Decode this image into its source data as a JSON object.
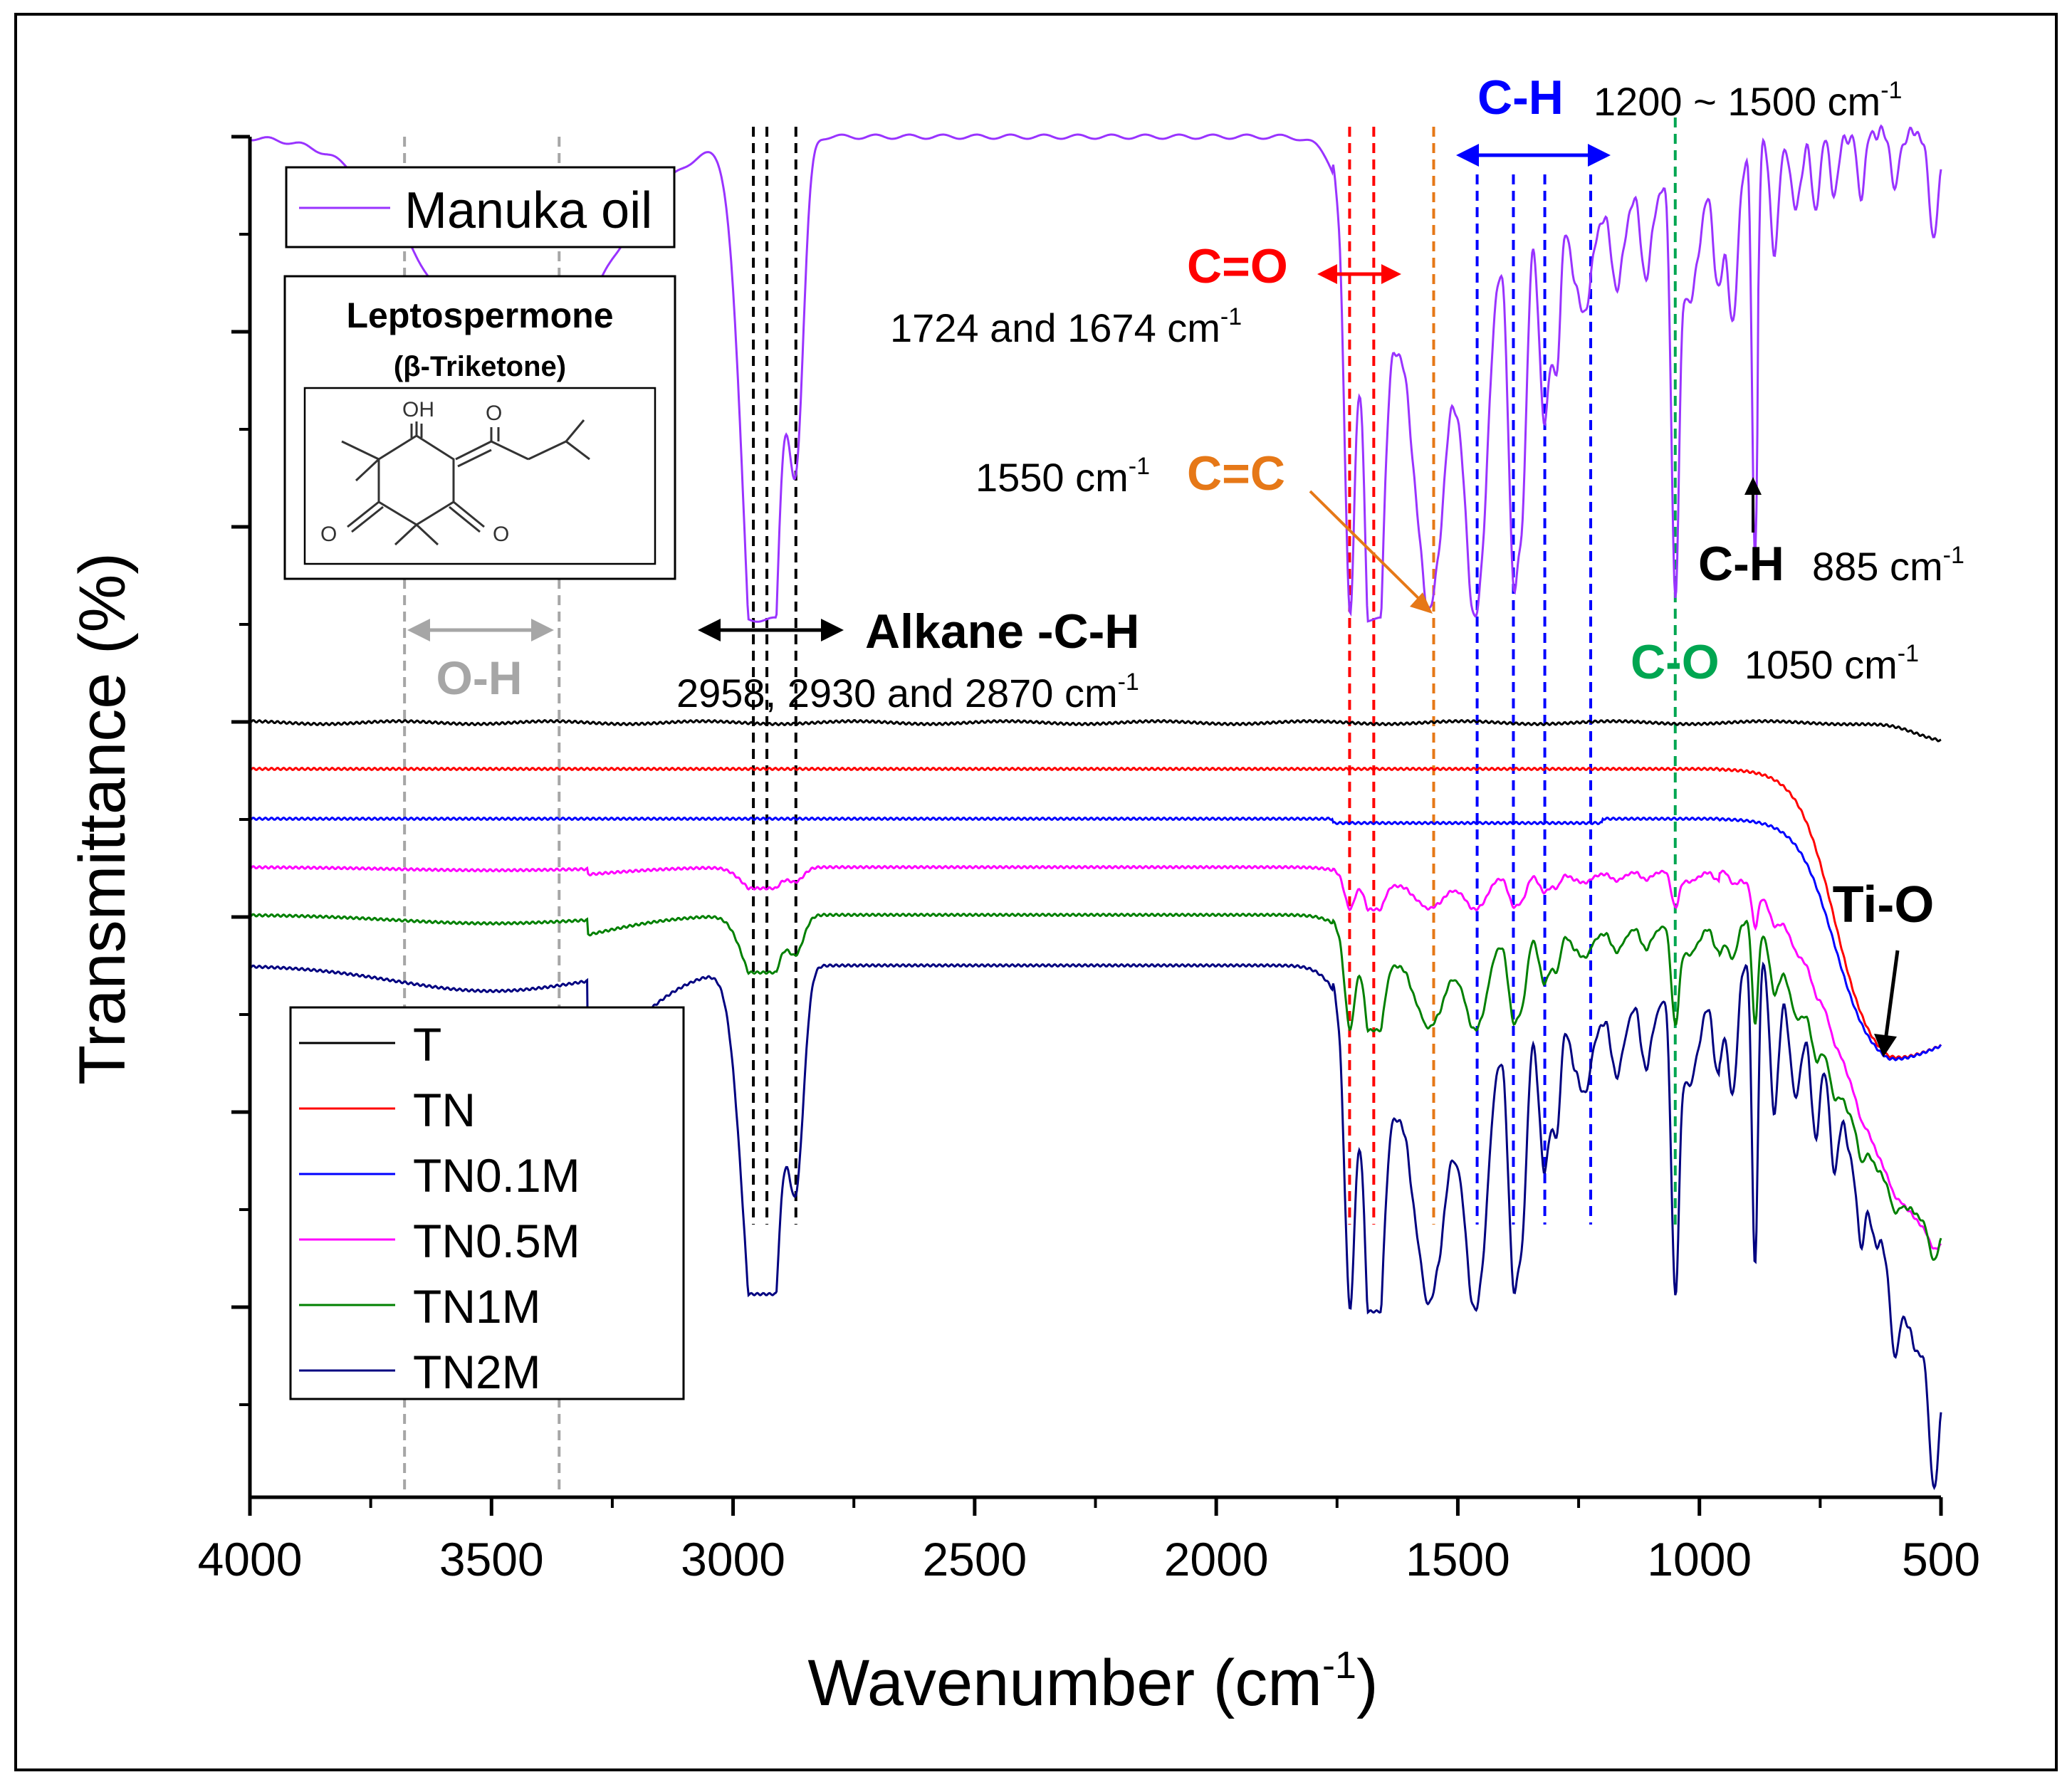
{
  "chart_data": {
    "type": "line",
    "title": "",
    "xlabel": "Wavenumber (cm",
    "xlabel_sup": "-1",
    "xlabel_end": ")",
    "ylabel": "Transmittance (%)",
    "xlim": [
      4000,
      500
    ],
    "xticks": [
      4000,
      3500,
      3000,
      2500,
      2000,
      1500,
      1000,
      500
    ],
    "y_tick_labels_shown": false,
    "colors": {
      "manuka": "#9933ff",
      "T": "#000000",
      "TN": "#ff0000",
      "TN0.1M": "#0000ff",
      "TN0.5M": "#ff00ff",
      "TN1M": "#008000",
      "TN2M": "#000080",
      "oh": "#a6a6a6",
      "alkane": "#000000",
      "co_double": "#ff0000",
      "cc": "#e67817",
      "ch": "#0000ff",
      "co_single": "#00a651"
    },
    "series": [
      {
        "name": "Manuka oil",
        "color": "#9933ff",
        "offset": 0,
        "scale": 1.0
      },
      {
        "name": "T",
        "color": "#000000",
        "offset": 0,
        "scale": 0
      },
      {
        "name": "TN",
        "color": "#ff0000",
        "offset": 0,
        "scale": 0
      },
      {
        "name": "TN0.1M",
        "color": "#0000ff",
        "offset": 0,
        "scale": 0
      },
      {
        "name": "TN0.5M",
        "color": "#ff00ff",
        "offset": 0,
        "scale": 0.05
      },
      {
        "name": "TN1M",
        "color": "#008000",
        "offset": 0,
        "scale": 0.12
      },
      {
        "name": "TN2M",
        "color": "#000080",
        "offset": 0,
        "scale": 1.0
      }
    ],
    "legend_top": {
      "entries": [
        "Manuka oil"
      ]
    },
    "legend_bottom": {
      "entries": [
        "T",
        "TN",
        "TN0.1M",
        "TN0.5M",
        "TN1M",
        "TN2M"
      ]
    },
    "inset": {
      "title": "Leptospermone",
      "subtitle": "(β-Triketone)",
      "atom_labels": [
        "OH",
        "O",
        "O",
        "O"
      ]
    },
    "marker_lines": [
      {
        "group": "oh",
        "x": 3680
      },
      {
        "group": "oh",
        "x": 3360
      },
      {
        "group": "alkane",
        "x": 2958
      },
      {
        "group": "alkane",
        "x": 2930
      },
      {
        "group": "alkane",
        "x": 2870
      },
      {
        "group": "co_double",
        "x": 1724
      },
      {
        "group": "co_double",
        "x": 1674
      },
      {
        "group": "cc",
        "x": 1550
      },
      {
        "group": "ch",
        "x": 1460
      },
      {
        "group": "ch",
        "x": 1385
      },
      {
        "group": "ch",
        "x": 1320
      },
      {
        "group": "ch",
        "x": 1225
      },
      {
        "group": "co_single",
        "x": 1050
      }
    ],
    "annotations": {
      "oh": "O-H",
      "alkane_label": "Alkane -C-H",
      "alkane_values": "2958, 2930 and 2870 cm",
      "cm_sup": "-1",
      "co_label": "C=O",
      "co_values": "1724 and 1674 cm",
      "cc_values": "1550 cm",
      "cc_label": "C=C",
      "ch_label": "C-H",
      "ch_range": "1200 ~ 1500 cm",
      "ch2_label": "C-H",
      "ch2_values": "885 cm",
      "cos_label": "C-O",
      "cos_values": "1050 cm",
      "tio_label": "Ti-O"
    }
  }
}
